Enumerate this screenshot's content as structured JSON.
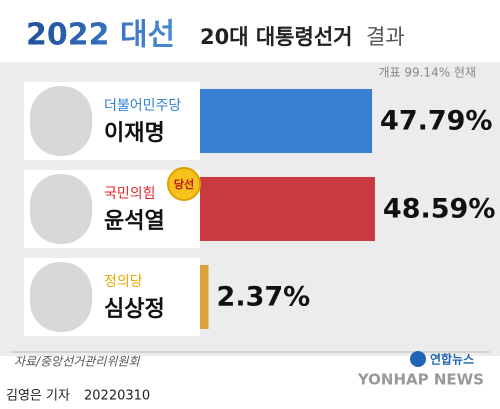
{
  "chart_data": {
    "type": "hbar",
    "title": "2022 대선",
    "subtitle": "20대 대통령선거",
    "subtitle_suffix": "결과",
    "note": "개표 99.14% 현재",
    "categories": [
      "이재명",
      "윤석열",
      "심상정"
    ],
    "parties": [
      "더불어민주당",
      "국민의힘",
      "정의당"
    ],
    "party_colors": [
      "#2f7fd0",
      "#e0262c",
      "#e8a800"
    ],
    "colors": [
      "#3a7ed2",
      "#c83a3f",
      "#d9a53a"
    ],
    "values": [
      47.79,
      48.59,
      2.37
    ],
    "value_labels": [
      "47.79%",
      "48.59%",
      "2.37%"
    ],
    "badge": "당선",
    "winner": "윤석열",
    "source": "자료/중앙선거관리위원회",
    "agency": "연합뉴스",
    "agency_en": "YONHAP NEWS",
    "byline": "김영은 기자",
    "date": "20220310"
  }
}
